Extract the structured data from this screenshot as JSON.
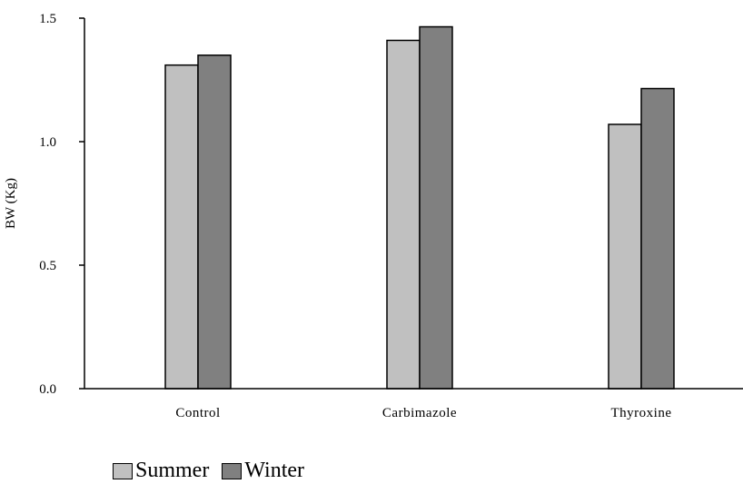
{
  "chart_data": {
    "type": "bar",
    "categories": [
      "Control",
      "Carbimazole",
      "Thyroxine"
    ],
    "series": [
      {
        "name": "Summer",
        "values": [
          1.31,
          1.41,
          1.07
        ],
        "color": "#c0c0c0"
      },
      {
        "name": "Winter",
        "values": [
          1.35,
          1.465,
          1.215
        ],
        "color": "#808080"
      }
    ],
    "ylabel": "BW (Kg)",
    "xlabel": "",
    "ylim": [
      0,
      1.5
    ],
    "yticks": [
      "0.0",
      "0.5",
      "1.0",
      "1.5"
    ],
    "ytick_values": [
      0,
      0.5,
      1.0,
      1.5
    ],
    "grid": false,
    "legend_position": "bottom-left"
  }
}
